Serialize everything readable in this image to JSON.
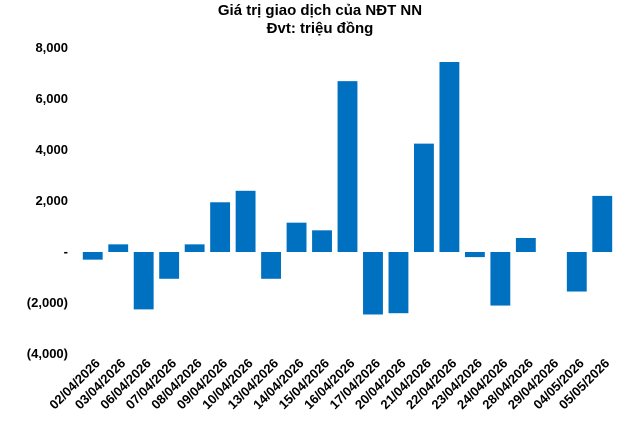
{
  "chart_data": {
    "type": "bar",
    "title": "Giá trị giao dịch của NĐT NN",
    "subtitle": "Đvt: triệu đồng",
    "categories": [
      "02/04/2026",
      "03/04/2026",
      "06/04/2026",
      "07/04/2026",
      "08/04/2026",
      "09/04/2026",
      "10/04/2026",
      "13/04/2026",
      "14/04/2026",
      "15/04/2026",
      "16/04/2026",
      "17/04/2026",
      "20/04/2026",
      "21/04/2026",
      "22/04/2026",
      "23/04/2026",
      "24/04/2026",
      "28/04/2026",
      "29/04/2026",
      "04/05/2026",
      "05/05/2026"
    ],
    "values": [
      -300,
      300,
      -2250,
      -1050,
      300,
      1950,
      2400,
      -1050,
      1150,
      850,
      6700,
      -2450,
      -2400,
      4250,
      7450,
      -200,
      -2100,
      550,
      0,
      -1550,
      2200
    ],
    "ylim": [
      -4000,
      8000
    ],
    "yticks": [
      -4000,
      -2000,
      0,
      2000,
      4000,
      6000,
      8000
    ],
    "ytick_labels": [
      "(4,000)",
      "(2,000)",
      "-",
      "2,000",
      "4,000",
      "6,000",
      "8,000"
    ],
    "bar_color": "#0070C0",
    "grid": false,
    "legend": "none"
  }
}
